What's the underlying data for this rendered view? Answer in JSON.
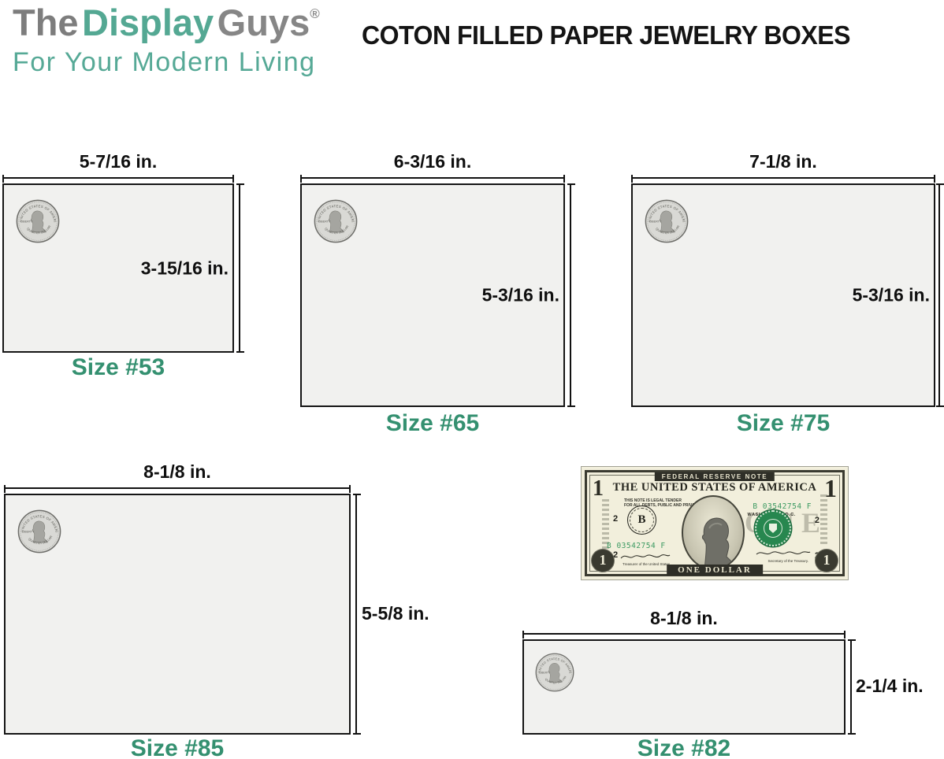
{
  "brand": {
    "word1": "The",
    "word2": "Display",
    "word3": "Guys",
    "reg": "®",
    "tagline": "For Your Modern Living"
  },
  "title": "COTON FILLED PAPER JEWELRY BOXES",
  "boxes": [
    {
      "size_label": "Size #53",
      "width_label": "5-7/16 in.",
      "height_label": "3-15/16 in."
    },
    {
      "size_label": "Size #65",
      "width_label": "6-3/16 in.",
      "height_label": "5-3/16 in."
    },
    {
      "size_label": "Size #75",
      "width_label": "7-1/8 in.",
      "height_label": "5-3/16 in."
    },
    {
      "size_label": "Size #85",
      "width_label": "8-1/8 in.",
      "height_label": "5-5/8 in."
    },
    {
      "size_label": "Size #82",
      "width_label": "8-1/8 in.",
      "height_label": "2-1/4 in."
    }
  ],
  "coin": {
    "top": "UNITED STATES OF AMERICA",
    "left": "LIBERTY",
    "bottom": "QUARTER DOLLAR"
  },
  "bill": {
    "top_banner": "FEDERAL RESERVE NOTE",
    "title": "THE UNITED STATES OF AMERICA",
    "legal1": "THIS NOTE IS LEGAL TENDER",
    "legal2": "FOR ALL DEBTS, PUBLIC AND PRIVATE",
    "serial": "B 03542754 F",
    "district_letter": "B",
    "district_number": "2",
    "city": "WASHINGTON, D.C.",
    "watermark": "ONE",
    "denomination_banner": "ONE DOLLAR",
    "corner_numeral": "1",
    "micro_left": "Treasurer of the United States.",
    "micro_right": "Secretary of the Treasury."
  },
  "colors": {
    "brand_gray": "#7d7d7d",
    "brand_teal": "#54a893",
    "size_label_green": "#349070",
    "box_fill": "#f1f1ef",
    "box_border": "#151515",
    "serial_green": "#3c9a62",
    "treasury_seal_green": "#27874f",
    "bill_paper": "#f2efdc"
  }
}
